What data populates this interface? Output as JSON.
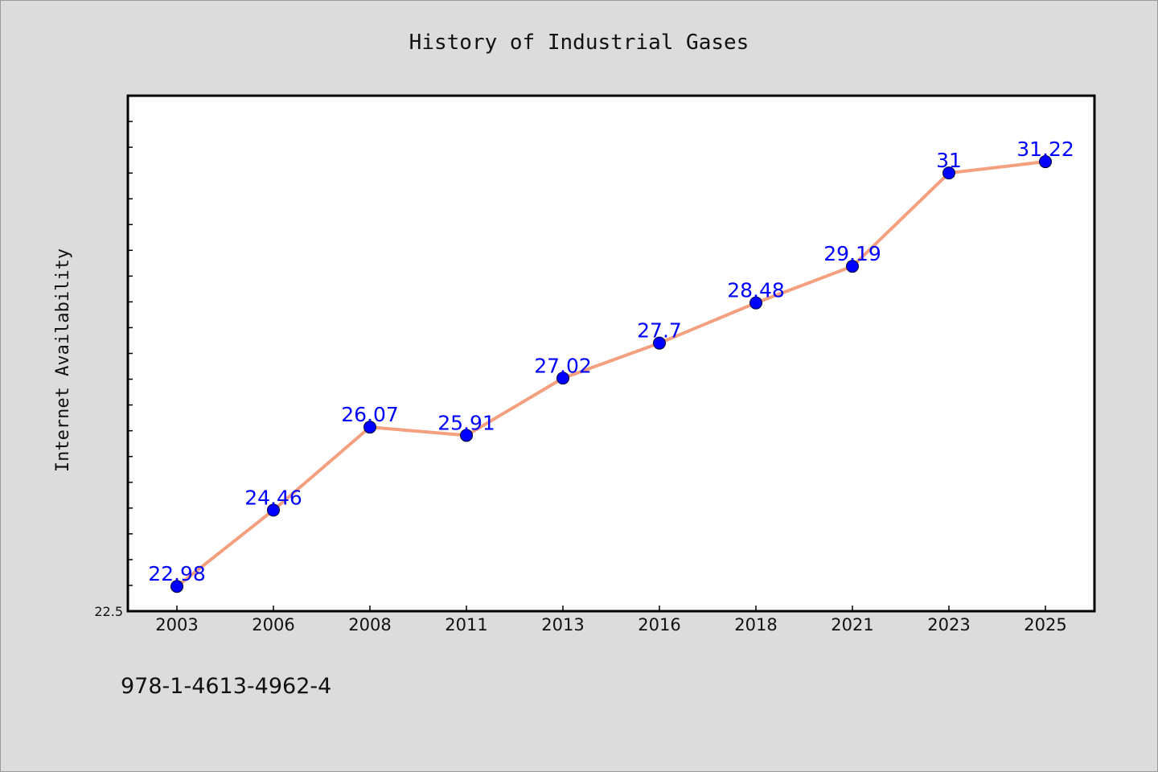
{
  "chart_data": {
    "type": "line",
    "title": "History of Industrial Gases",
    "xlabel": "",
    "ylabel": "Internet Availability",
    "categories": [
      "2003",
      "2006",
      "2008",
      "2011",
      "2013",
      "2016",
      "2018",
      "2021",
      "2023",
      "2025"
    ],
    "series": [
      {
        "values": [
          22.98,
          24.46,
          26.07,
          25.91,
          27.02,
          27.7,
          28.48,
          29.19,
          31,
          31.22
        ],
        "line_color": "#f4a07e",
        "marker_color": "#0000ff"
      }
    ],
    "data_labels": [
      "22.98",
      "24.46",
      "26.07",
      "25.91",
      "27.02",
      "27.7",
      "28.48",
      "29.19",
      "31",
      "31.22"
    ],
    "ylim": [
      22.5,
      32.5
    ],
    "y_tick_labels": [
      "22.5"
    ],
    "grid": false,
    "legend": "none"
  },
  "footer_text": "978-1-4613-4962-4"
}
